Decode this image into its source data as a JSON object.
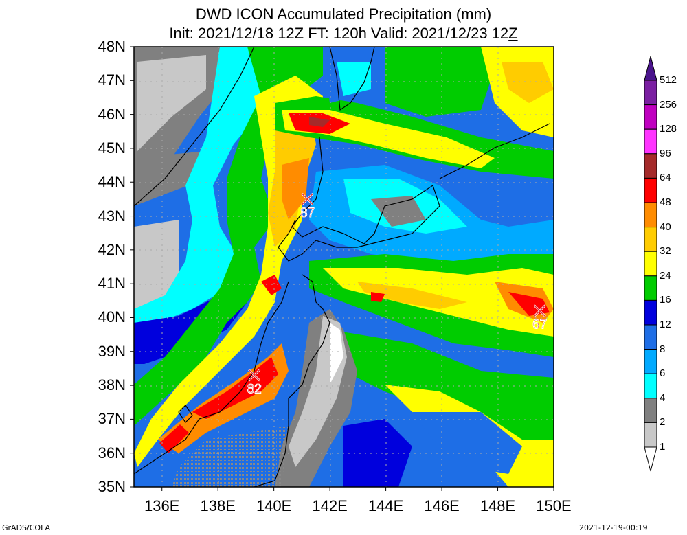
{
  "title": "DWD ICON Accumulated Precipitation (mm)",
  "subtitle_pre": "Init: 2021/12/18 12Z  FT: 120h  Valid: 2021/12/23 12",
  "subtitle_post": "Z",
  "lat_labels": [
    "48N",
    "47N",
    "46N",
    "45N",
    "44N",
    "43N",
    "42N",
    "41N",
    "40N",
    "39N",
    "38N",
    "37N",
    "36N",
    "35N"
  ],
  "lon_labels": [
    "136E",
    "138E",
    "140E",
    "142E",
    "144E",
    "146E",
    "148E",
    "150E"
  ],
  "colorbar": {
    "labels": [
      "512",
      "256",
      "128",
      "96",
      "64",
      "48",
      "40",
      "32",
      "24",
      "16",
      "12",
      "8",
      "6",
      "4",
      "2",
      "1"
    ],
    "colors": [
      "#4a148c",
      "#7b1fa2",
      "#c000c0",
      "#ff33ff",
      "#a52a2a",
      "#ff0000",
      "#ff8c00",
      "#ffcc00",
      "#ffff00",
      "#00cc00",
      "#0000dd",
      "#1e6ee6",
      "#00aaff",
      "#00ffff",
      "#808080",
      "#c8c8c8"
    ]
  },
  "markers": [
    {
      "label": "87",
      "lat": 43.5,
      "lon": 141.2
    },
    {
      "label": "82",
      "lat": 38.3,
      "lon": 139.3
    },
    {
      "label": "67",
      "lat": 40.2,
      "lon": 149.5
    }
  ],
  "footer_left": "GrADS/COLA",
  "footer_right": "2021-12-19-00:19"
}
